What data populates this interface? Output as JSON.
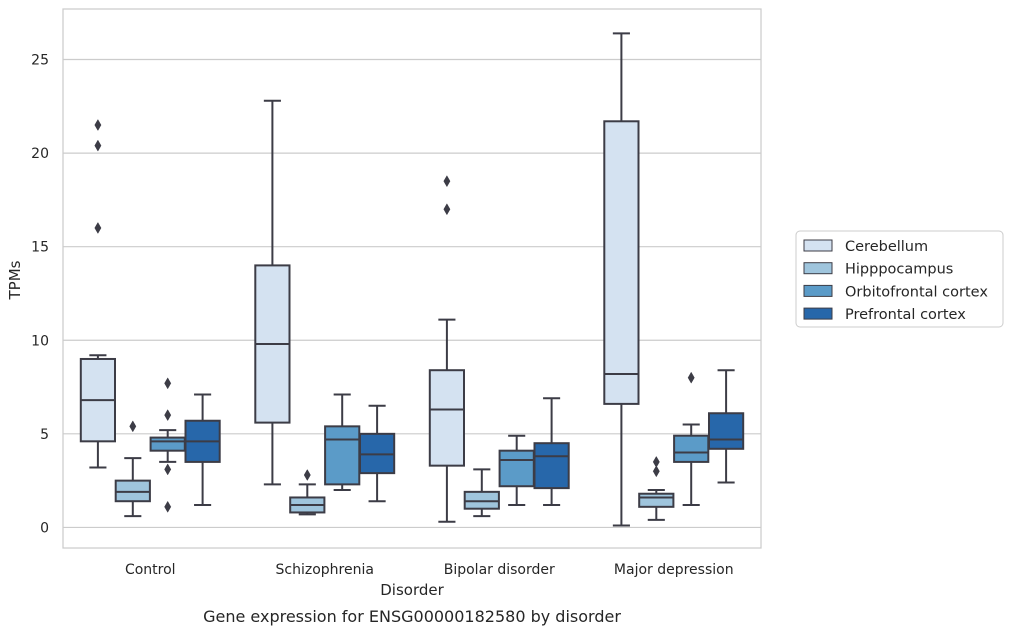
{
  "chart_data": {
    "type": "box",
    "title": "Gene expression for ENSG00000182580 by disorder",
    "xlabel": "Disorder",
    "ylabel": "TPMs",
    "ylim": [
      -1.1,
      27.7
    ],
    "yticks": [
      0,
      5,
      10,
      15,
      20,
      25
    ],
    "grid": true,
    "legend_position": "right",
    "categories": [
      "Control",
      "Schizophrenia",
      "Bipolar disorder",
      "Major depression"
    ],
    "series": [
      {
        "name": "Cerebellum",
        "color": "#d4e2f1",
        "boxes": [
          {
            "whislo": 3.2,
            "q1": 4.6,
            "med": 6.8,
            "q3": 9.0,
            "whishi": 9.2,
            "fliers": [
              16.0,
              20.4,
              21.5
            ]
          },
          {
            "whislo": 2.3,
            "q1": 5.6,
            "med": 9.8,
            "q3": 14.0,
            "whishi": 22.8,
            "fliers": []
          },
          {
            "whislo": 0.3,
            "q1": 3.3,
            "med": 6.3,
            "q3": 8.4,
            "whishi": 11.1,
            "fliers": [
              17.0,
              18.5
            ]
          },
          {
            "whislo": 0.1,
            "q1": 6.6,
            "med": 8.2,
            "q3": 21.7,
            "whishi": 26.4,
            "fliers": []
          }
        ]
      },
      {
        "name": "Hipppocampus",
        "color": "#9fc5dd",
        "boxes": [
          {
            "whislo": 0.6,
            "q1": 1.4,
            "med": 1.9,
            "q3": 2.5,
            "whishi": 3.7,
            "fliers": [
              5.4
            ]
          },
          {
            "whislo": 0.7,
            "q1": 0.8,
            "med": 1.2,
            "q3": 1.6,
            "whishi": 2.3,
            "fliers": [
              2.8
            ]
          },
          {
            "whislo": 0.6,
            "q1": 1.0,
            "med": 1.4,
            "q3": 1.9,
            "whishi": 3.1,
            "fliers": []
          },
          {
            "whislo": 0.4,
            "q1": 1.1,
            "med": 1.6,
            "q3": 1.8,
            "whishi": 2.0,
            "fliers": [
              3.0,
              3.5
            ]
          }
        ]
      },
      {
        "name": "Orbitofrontal cortex",
        "color": "#5b9bc8",
        "boxes": [
          {
            "whislo": 3.5,
            "q1": 4.1,
            "med": 4.6,
            "q3": 4.8,
            "whishi": 5.2,
            "fliers": [
              1.1,
              3.1,
              6.0,
              7.7
            ]
          },
          {
            "whislo": 2.0,
            "q1": 2.3,
            "med": 4.7,
            "q3": 5.4,
            "whishi": 7.1,
            "fliers": []
          },
          {
            "whislo": 1.2,
            "q1": 2.2,
            "med": 3.6,
            "q3": 4.1,
            "whishi": 4.9,
            "fliers": []
          },
          {
            "whislo": 1.2,
            "q1": 3.5,
            "med": 4.0,
            "q3": 4.9,
            "whishi": 5.5,
            "fliers": [
              8.0
            ]
          }
        ]
      },
      {
        "name": "Prefrontal cortex",
        "color": "#2767aa",
        "boxes": [
          {
            "whislo": 1.2,
            "q1": 3.5,
            "med": 4.6,
            "q3": 5.7,
            "whishi": 7.1,
            "fliers": []
          },
          {
            "whislo": 1.4,
            "q1": 2.9,
            "med": 3.9,
            "q3": 5.0,
            "whishi": 6.5,
            "fliers": []
          },
          {
            "whislo": 1.2,
            "q1": 2.1,
            "med": 3.8,
            "q3": 4.5,
            "whishi": 6.9,
            "fliers": []
          },
          {
            "whislo": 2.4,
            "q1": 4.2,
            "med": 4.7,
            "q3": 6.1,
            "whishi": 8.4,
            "fliers": []
          }
        ]
      }
    ]
  },
  "colors": {
    "box_edge": "#3c3c46",
    "grid": "#cccccc",
    "axes_frame": "#cccccc",
    "text": "#262626"
  }
}
